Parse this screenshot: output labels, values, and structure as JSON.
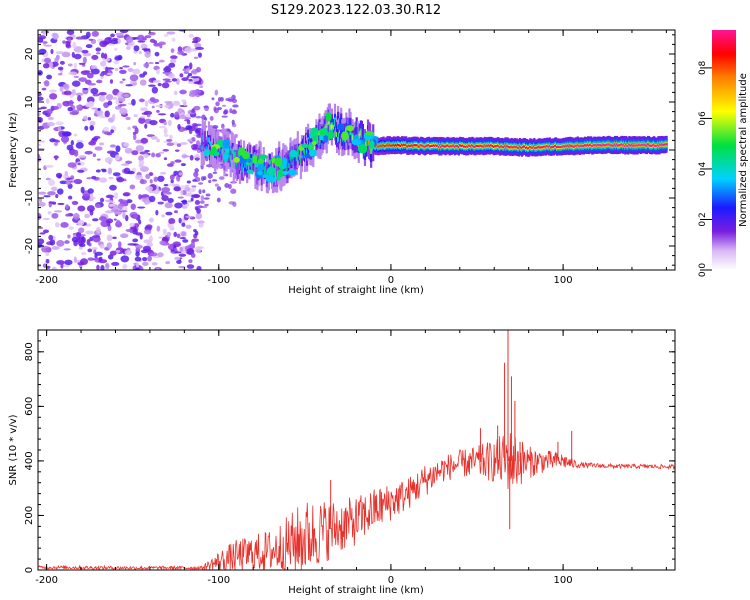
{
  "title": "S129.2023.122.03.30.R12",
  "chart_data": [
    {
      "type": "heatmap",
      "xlabel": "Height of straight line (km)",
      "ylabel": "Frequency (Hz)",
      "xlim": [
        -205,
        165
      ],
      "ylim": [
        -25,
        25
      ],
      "xticks": [
        -200,
        -100,
        0,
        100
      ],
      "yticks": [
        -20,
        -10,
        0,
        10,
        20
      ],
      "colorbar": {
        "label": "Normalized spectral amplitude",
        "range": [
          0,
          0.95
        ],
        "ticks": [
          0.0,
          0.2,
          0.4,
          0.6,
          0.8
        ],
        "colormap": "rainbow (white - violet - blue - cyan - green - yellow - red - magenta)"
      },
      "ridge": {
        "description": "dominant frequency versus height",
        "x": [
          -110,
          -100,
          -90,
          -80,
          -70,
          -60,
          -50,
          -40,
          -35,
          -30,
          -25,
          -20,
          -15,
          -10,
          0,
          20,
          40,
          60,
          80,
          100,
          120,
          160
        ],
        "frequency_hz": [
          2,
          0,
          -2,
          -3,
          -4,
          -3,
          0,
          3,
          5,
          4,
          4,
          3,
          1.5,
          0.8,
          1,
          0.8,
          0.8,
          0.8,
          0.5,
          0.8,
          1,
          1
        ],
        "peak_amplitude": [
          0.3,
          0.4,
          0.45,
          0.5,
          0.45,
          0.45,
          0.5,
          0.55,
          0.6,
          0.55,
          0.6,
          0.55,
          0.7,
          0.8,
          0.85,
          0.9,
          0.9,
          0.9,
          0.9,
          0.92,
          0.95,
          0.95
        ]
      },
      "noise_region": {
        "description": "broadband low-amplitude (violet) speckle filling all frequencies",
        "x_range": [
          -205,
          -110
        ],
        "amplitude_range": [
          0.05,
          0.2
        ]
      }
    },
    {
      "type": "line",
      "xlabel": "Height of straight line (km)",
      "ylabel": "SNR (10 * v/v)",
      "xlim": [
        -205,
        165
      ],
      "ylim": [
        0,
        880
      ],
      "xticks": [
        -200,
        -100,
        0,
        100
      ],
      "yticks": [
        0,
        200,
        400,
        600,
        800
      ],
      "color": "#e8302a",
      "envelope": {
        "x": [
          -205,
          -160,
          -110,
          -100,
          -90,
          -80,
          -70,
          -60,
          -50,
          -40,
          -30,
          -20,
          -10,
          0,
          10,
          20,
          30,
          40,
          50,
          60,
          70,
          80,
          90,
          100,
          105,
          110,
          130,
          150,
          165
        ],
        "mean": [
          10,
          8,
          8,
          30,
          50,
          60,
          70,
          90,
          120,
          140,
          160,
          180,
          220,
          250,
          280,
          330,
          370,
          390,
          395,
          400,
          400,
          395,
          400,
          400,
          390,
          385,
          380,
          380,
          378
        ],
        "spread": [
          6,
          6,
          6,
          40,
          60,
          70,
          80,
          110,
          140,
          120,
          100,
          90,
          80,
          70,
          60,
          60,
          50,
          50,
          60,
          80,
          120,
          60,
          40,
          30,
          20,
          10,
          8,
          8,
          8
        ]
      },
      "spikes": [
        {
          "x": -35,
          "y": 330
        },
        {
          "x": 52,
          "y": 520
        },
        {
          "x": 62,
          "y": 530
        },
        {
          "x": 66,
          "y": 760
        },
        {
          "x": 68,
          "y": 880
        },
        {
          "x": 69,
          "y": 150
        },
        {
          "x": 70,
          "y": 710
        },
        {
          "x": 72,
          "y": 620
        },
        {
          "x": 75,
          "y": 470
        },
        {
          "x": 97,
          "y": 470
        },
        {
          "x": 105,
          "y": 510
        }
      ]
    }
  ]
}
